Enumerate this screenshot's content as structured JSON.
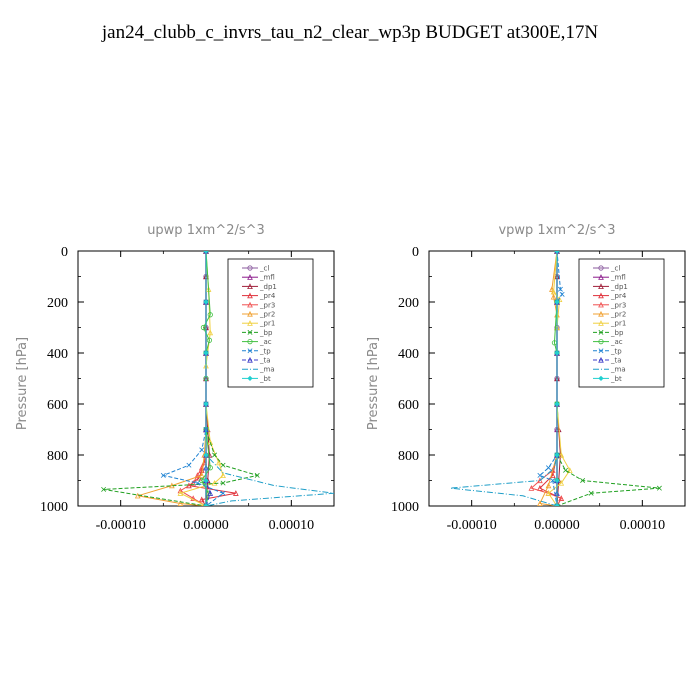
{
  "title": "jan24_clubb_c_invrs_tau_n2_clear_wp3p  BUDGET at300E,17N",
  "chart_data": [
    {
      "type": "line",
      "title": "upwp   1xm^2/s^3",
      "ylabel": "Pressure [hPa]",
      "xlim": [
        -0.00015,
        0.00015
      ],
      "ylim": [
        1000,
        0
      ],
      "xticks": [
        "-0.00010",
        "0.00000",
        "0.00010"
      ],
      "xtick_values": [
        -0.0001,
        0,
        0.0001
      ],
      "yticks": [
        "0",
        "200",
        "400",
        "600",
        "800",
        "1000"
      ],
      "ytick_values": [
        0,
        200,
        400,
        600,
        800,
        1000
      ],
      "legend_position": "top-right",
      "series": [
        {
          "name": "_cl",
          "color": "#8a5a9e",
          "marker": "circle",
          "dash": "",
          "x": [
            0,
            0,
            0,
            0,
            0,
            0,
            0,
            0,
            0,
            0,
            0
          ],
          "y": [
            0,
            100,
            200,
            300,
            400,
            500,
            600,
            700,
            800,
            900,
            1000
          ]
        },
        {
          "name": "_mfl",
          "color": "#8b1a8b",
          "marker": "tri",
          "dash": "",
          "x": [
            0,
            0,
            0,
            0,
            0,
            0,
            0,
            0,
            0,
            0,
            0
          ],
          "y": [
            0,
            100,
            200,
            300,
            400,
            500,
            600,
            700,
            800,
            900,
            1000
          ]
        },
        {
          "name": "_dp1",
          "color": "#a0203a",
          "marker": "tri",
          "dash": "",
          "x": [
            0,
            0,
            0,
            0,
            0,
            0,
            0,
            2e-06,
            4e-06,
            2e-06,
            0
          ],
          "y": [
            0,
            100,
            200,
            300,
            400,
            500,
            600,
            700,
            800,
            900,
            1000
          ]
        },
        {
          "name": "_pr4",
          "color": "#e0303a",
          "marker": "tri",
          "dash": "",
          "x": [
            0,
            0,
            0,
            0,
            0,
            0,
            -2e-06,
            -5e-06,
            -8e-06,
            -2e-05,
            3.5e-05,
            -5e-06,
            0
          ],
          "y": [
            0,
            200,
            400,
            600,
            700,
            800,
            830,
            860,
            890,
            920,
            950,
            975,
            1000
          ]
        },
        {
          "name": "_pr3",
          "color": "#f05050",
          "marker": "tri",
          "dash": "",
          "x": [
            0,
            0,
            0,
            0,
            0,
            0,
            -5e-06,
            -1e-05,
            -1.5e-05,
            -3e-05,
            -1.5e-05,
            0
          ],
          "y": [
            0,
            200,
            400,
            600,
            700,
            800,
            850,
            880,
            910,
            940,
            970,
            1000
          ]
        },
        {
          "name": "_pr2",
          "color": "#f0a030",
          "marker": "tri",
          "dash": "",
          "x": [
            0,
            0,
            0,
            0,
            0,
            -2e-06,
            -5e-06,
            -4e-05,
            -8e-05,
            -3e-05,
            0
          ],
          "y": [
            0,
            200,
            400,
            600,
            700,
            800,
            880,
            920,
            960,
            990,
            1000
          ]
        },
        {
          "name": "_pr1",
          "color": "#f0d040",
          "marker": "tri",
          "dash": "",
          "x": [
            0,
            3e-06,
            5e-06,
            0,
            0,
            5e-06,
            1.5e-05,
            2e-05,
            1e-05,
            -3e-05,
            0
          ],
          "y": [
            0,
            150,
            320,
            450,
            600,
            750,
            830,
            880,
            910,
            950,
            1000
          ]
        },
        {
          "name": "_bp",
          "color": "#20a020",
          "marker": "x",
          "dash": "4,2",
          "x": [
            0,
            0,
            0,
            0,
            0,
            1e-05,
            2e-05,
            6e-05,
            2e-05,
            -0.00012,
            0
          ],
          "y": [
            0,
            200,
            400,
            600,
            700,
            800,
            840,
            880,
            910,
            935,
            1000
          ]
        },
        {
          "name": "_ac",
          "color": "#40c040",
          "marker": "circle",
          "dash": "",
          "x": [
            0,
            5e-06,
            -3e-06,
            4e-06,
            0,
            0,
            0,
            5e-06,
            -5e-06,
            3e-06,
            0
          ],
          "y": [
            0,
            250,
            300,
            350,
            400,
            500,
            700,
            850,
            900,
            950,
            1000
          ]
        },
        {
          "name": "_tp",
          "color": "#1e82d2",
          "marker": "x",
          "dash": "4,2",
          "x": [
            0,
            0,
            0,
            0,
            0,
            -5e-06,
            -2e-05,
            -5e-05,
            -1e-05,
            2e-05,
            0
          ],
          "y": [
            0,
            200,
            400,
            600,
            700,
            780,
            840,
            880,
            910,
            950,
            1000
          ]
        },
        {
          "name": "_ta",
          "color": "#3c3cc8",
          "marker": "tri",
          "dash": "4,2",
          "x": [
            0,
            0,
            0,
            0,
            0,
            0,
            0,
            0,
            5e-06,
            0
          ],
          "y": [
            0,
            200,
            400,
            600,
            700,
            800,
            850,
            900,
            950,
            1000
          ]
        },
        {
          "name": "_ma",
          "color": "#1e9ec8",
          "marker": "",
          "dash": "6,2,1,2",
          "x": [
            0,
            0,
            0,
            0,
            0,
            0,
            2e-05,
            8e-05,
            0.00015,
            3e-05,
            0
          ],
          "y": [
            0,
            200,
            400,
            600,
            700,
            800,
            870,
            920,
            950,
            980,
            1000
          ]
        },
        {
          "name": "_bt",
          "color": "#20d0d0",
          "marker": "diamond",
          "dash": "",
          "x": [
            0,
            0,
            0,
            0,
            0,
            0,
            0
          ],
          "y": [
            0,
            200,
            400,
            600,
            800,
            900,
            1000
          ]
        }
      ]
    },
    {
      "type": "line",
      "title": "vpwp   1xm^2/s^3",
      "ylabel": "Pressure [hPa]",
      "xlim": [
        -0.00015,
        0.00015
      ],
      "ylim": [
        1000,
        0
      ],
      "xticks": [
        "-0.00010",
        "0.00000",
        "0.00010"
      ],
      "xtick_values": [
        -0.0001,
        0,
        0.0001
      ],
      "yticks": [
        "0",
        "200",
        "400",
        "600",
        "800",
        "1000"
      ],
      "ytick_values": [
        0,
        200,
        400,
        600,
        800,
        1000
      ],
      "legend_position": "top-right",
      "series": [
        {
          "name": "_cl",
          "color": "#8a5a9e",
          "marker": "circle",
          "dash": "",
          "x": [
            0,
            0,
            0,
            0,
            0,
            0,
            0,
            0,
            0,
            0,
            0
          ],
          "y": [
            0,
            100,
            200,
            300,
            400,
            500,
            600,
            700,
            800,
            900,
            1000
          ]
        },
        {
          "name": "_mfl",
          "color": "#8b1a8b",
          "marker": "tri",
          "dash": "",
          "x": [
            0,
            0,
            0,
            0,
            0,
            0,
            0,
            0,
            0,
            0,
            0
          ],
          "y": [
            0,
            100,
            200,
            300,
            400,
            500,
            600,
            700,
            800,
            900,
            1000
          ]
        },
        {
          "name": "_dp1",
          "color": "#a0203a",
          "marker": "tri",
          "dash": "",
          "x": [
            0,
            0,
            0,
            0,
            0,
            0,
            0,
            2e-06,
            4e-06,
            2e-06,
            0
          ],
          "y": [
            0,
            100,
            200,
            300,
            400,
            500,
            600,
            700,
            800,
            900,
            1000
          ]
        },
        {
          "name": "_pr4",
          "color": "#e0303a",
          "marker": "tri",
          "dash": "",
          "x": [
            0,
            0,
            0,
            0,
            0,
            -5e-06,
            -2e-05,
            5e-06,
            0
          ],
          "y": [
            0,
            200,
            400,
            600,
            800,
            880,
            930,
            970,
            1000
          ]
        },
        {
          "name": "_pr3",
          "color": "#f05050",
          "marker": "tri",
          "dash": "",
          "x": [
            0,
            0,
            0,
            0,
            0,
            -5e-06,
            -2e-05,
            -3e-05,
            -1e-05,
            5e-06,
            0
          ],
          "y": [
            0,
            200,
            400,
            600,
            800,
            860,
            900,
            930,
            950,
            970,
            1000
          ]
        },
        {
          "name": "_pr2",
          "color": "#f0a030",
          "marker": "tri",
          "dash": "",
          "x": [
            0,
            -6e-06,
            -4e-06,
            0,
            0,
            0,
            0,
            -1e-05,
            -2e-05,
            0
          ],
          "y": [
            0,
            150,
            180,
            250,
            400,
            600,
            800,
            920,
            990,
            1000
          ]
        },
        {
          "name": "_pr1",
          "color": "#f0d040",
          "marker": "tri",
          "dash": "",
          "x": [
            0,
            -4e-06,
            3e-06,
            0,
            0,
            5e-06,
            1.5e-05,
            5e-06,
            -1e-05,
            0
          ],
          "y": [
            0,
            160,
            190,
            300,
            600,
            800,
            860,
            910,
            950,
            1000
          ]
        },
        {
          "name": "_bp",
          "color": "#20a020",
          "marker": "x",
          "dash": "4,2",
          "x": [
            0,
            0,
            0,
            0,
            0,
            1e-05,
            3e-05,
            0.00012,
            4e-05,
            0
          ],
          "y": [
            0,
            200,
            400,
            600,
            800,
            860,
            900,
            930,
            950,
            1000
          ]
        },
        {
          "name": "_ac",
          "color": "#40c040",
          "marker": "circle",
          "dash": "",
          "x": [
            0,
            0,
            -3e-06,
            0,
            0,
            0,
            0,
            0
          ],
          "y": [
            0,
            200,
            360,
            400,
            600,
            800,
            900,
            1000
          ]
        },
        {
          "name": "_tp",
          "color": "#1e82d2",
          "marker": "x",
          "dash": "4,2",
          "x": [
            0,
            4e-06,
            6e-06,
            0,
            0,
            0,
            -1e-05,
            -2e-05,
            -5e-06,
            0
          ],
          "y": [
            0,
            150,
            170,
            200,
            400,
            800,
            850,
            880,
            900,
            1000
          ]
        },
        {
          "name": "_ta",
          "color": "#3c3cc8",
          "marker": "tri",
          "dash": "4,2",
          "x": [
            0,
            0,
            0,
            0,
            0,
            0,
            0,
            0
          ],
          "y": [
            0,
            200,
            400,
            600,
            800,
            900,
            950,
            1000
          ]
        },
        {
          "name": "_ma",
          "color": "#1e9ec8",
          "marker": "",
          "dash": "6,2,1,2",
          "x": [
            0,
            0,
            0,
            0,
            0,
            -3e-06,
            -2e-05,
            -0.000125,
            -4e-05,
            0
          ],
          "y": [
            0,
            200,
            400,
            600,
            800,
            850,
            900,
            930,
            960,
            1000
          ]
        },
        {
          "name": "_bt",
          "color": "#20d0d0",
          "marker": "diamond",
          "dash": "",
          "x": [
            0,
            0,
            0,
            0,
            0,
            0,
            0
          ],
          "y": [
            0,
            200,
            400,
            600,
            800,
            900,
            1000
          ]
        }
      ]
    }
  ]
}
